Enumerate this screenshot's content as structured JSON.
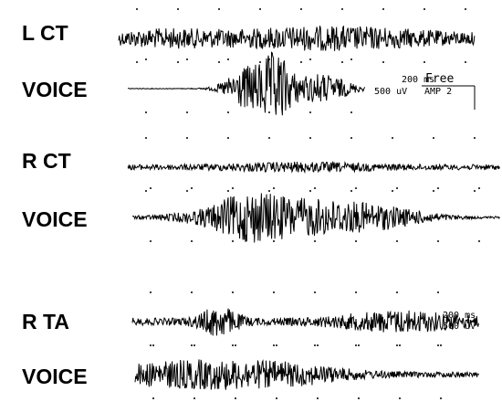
{
  "labels": [
    "L CT",
    "VOICE",
    "R CT",
    "VOICE",
    "R TA",
    "VOICE"
  ],
  "annotations": {
    "free": "Free",
    "time_scale_1": "200 ms",
    "amp_scale_1": "500 uV",
    "amp_setting": "AMP 2",
    "time_scale_2": "200 ms",
    "amp_scale_2": "500 uV"
  }
}
